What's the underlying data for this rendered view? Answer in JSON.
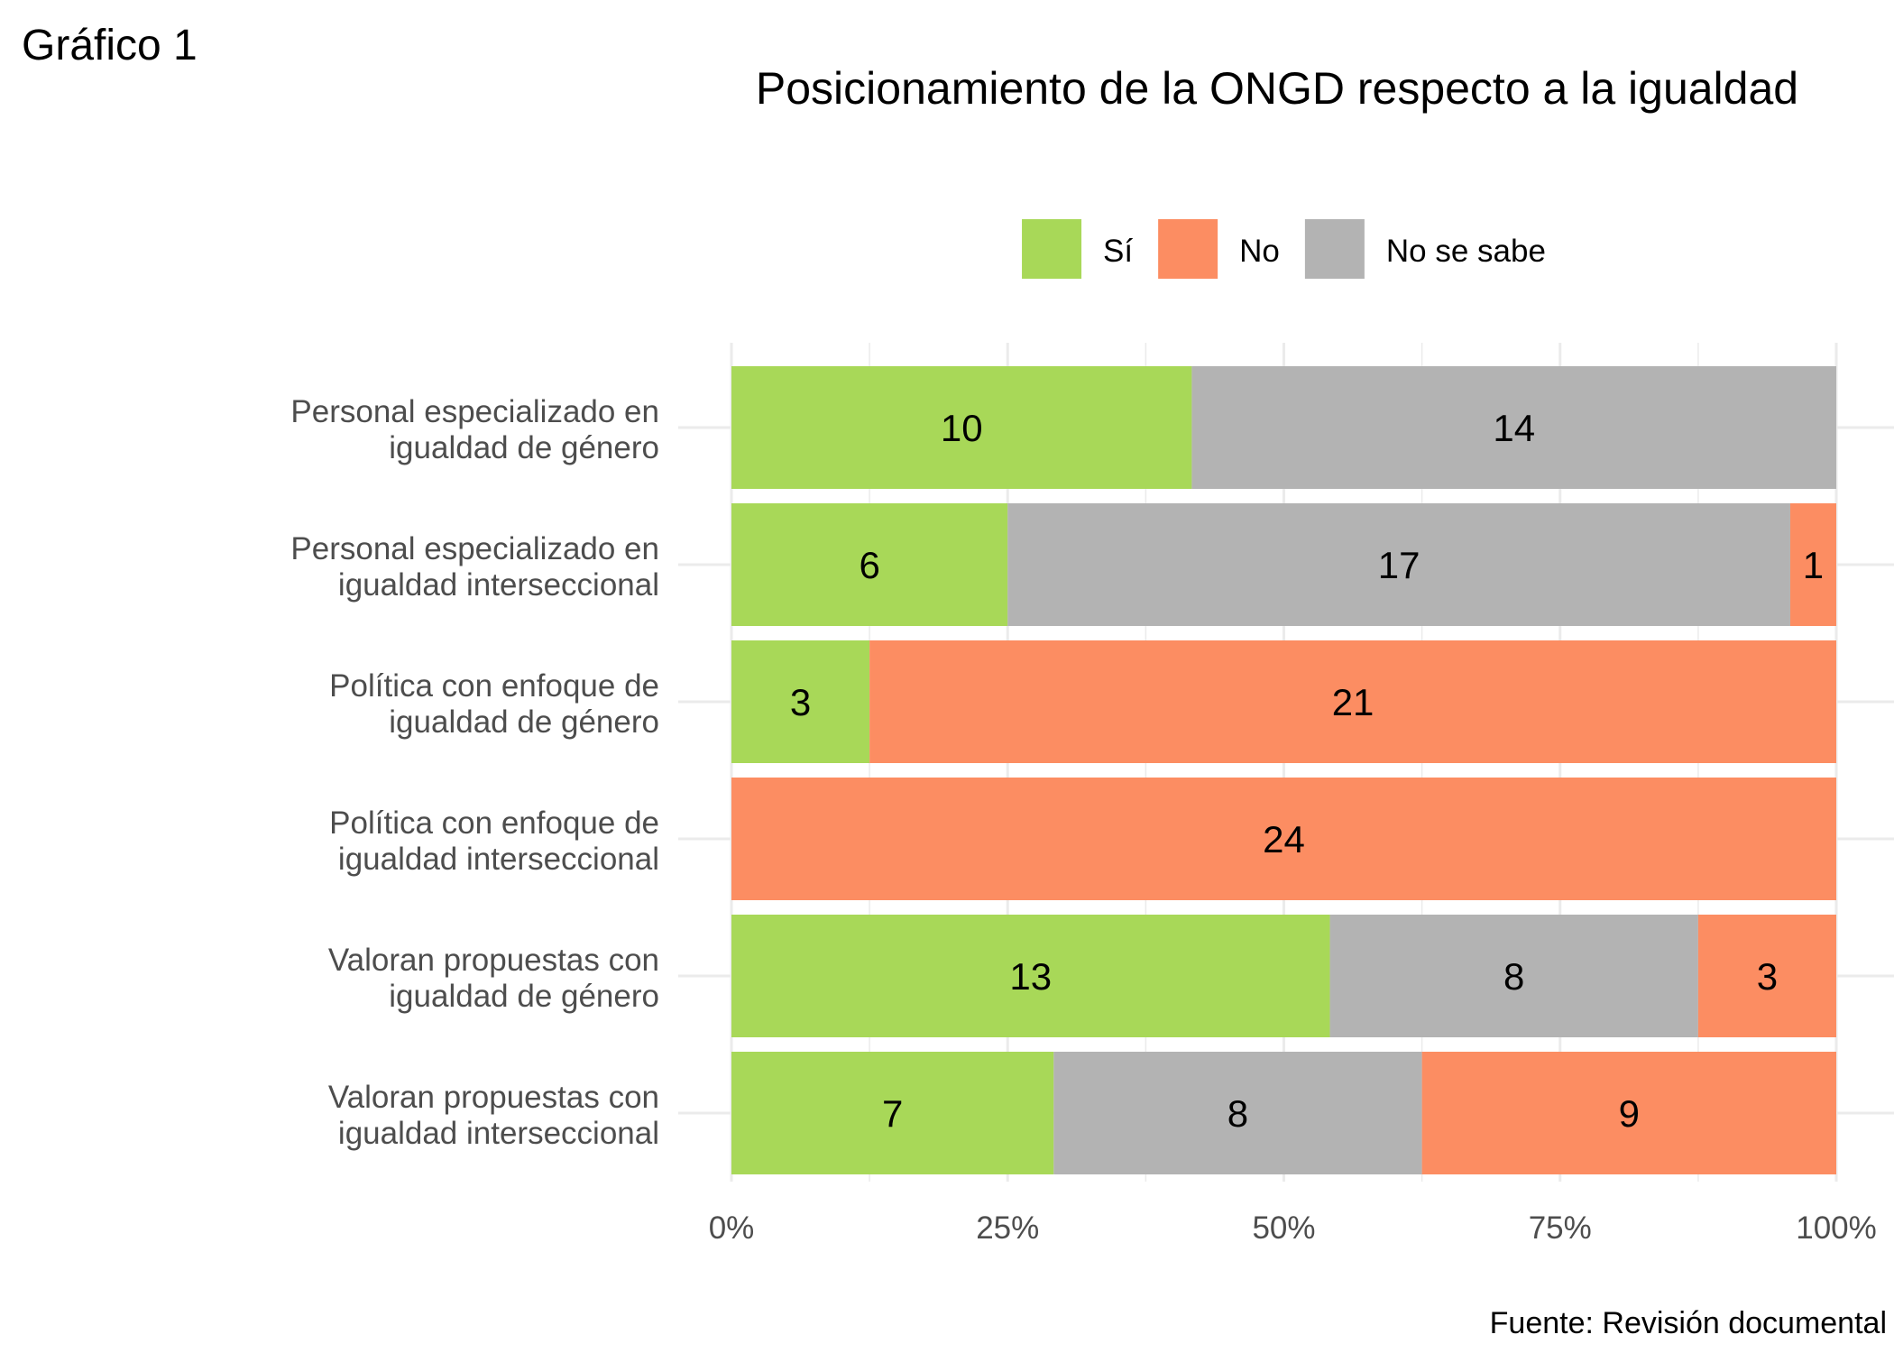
{
  "figure_label": "Gráfico 1",
  "source": "Fuente: Revisión documental",
  "colors": {
    "si": "#a8d858",
    "no": "#fc8d62",
    "nosabe": "#b3b3b3",
    "grid": "#ebebeb",
    "axis_text": "#4d4d4d",
    "text": "#000000"
  },
  "chart_data": {
    "type": "bar",
    "orientation": "horizontal",
    "stacked": true,
    "normalized": true,
    "title": "Posicionamiento de la ONGD respecto a la igualdad",
    "legend": {
      "position": "top",
      "entries": [
        {
          "key": "si",
          "label": "Sí"
        },
        {
          "key": "no",
          "label": "No"
        },
        {
          "key": "nosabe",
          "label": "No se sabe"
        }
      ]
    },
    "x_ticks": [
      "0%",
      "25%",
      "50%",
      "75%",
      "100%"
    ],
    "xlim": [
      0,
      1
    ],
    "grid": true,
    "categories": [
      {
        "lines": [
          "Personal especializado en",
          "igualdad de género"
        ],
        "segments": [
          {
            "key": "si",
            "value": 10
          },
          {
            "key": "nosabe",
            "value": 14
          }
        ]
      },
      {
        "lines": [
          "Personal especializado en",
          "igualdad interseccional"
        ],
        "segments": [
          {
            "key": "si",
            "value": 6
          },
          {
            "key": "nosabe",
            "value": 17
          },
          {
            "key": "no",
            "value": 1
          }
        ]
      },
      {
        "lines": [
          "Política con enfoque de",
          "igualdad de género"
        ],
        "segments": [
          {
            "key": "si",
            "value": 3
          },
          {
            "key": "no",
            "value": 21
          }
        ]
      },
      {
        "lines": [
          "Política con enfoque de",
          "igualdad interseccional"
        ],
        "segments": [
          {
            "key": "no",
            "value": 24
          }
        ]
      },
      {
        "lines": [
          "Valoran propuestas con",
          "igualdad de género"
        ],
        "segments": [
          {
            "key": "si",
            "value": 13
          },
          {
            "key": "nosabe",
            "value": 8
          },
          {
            "key": "no",
            "value": 3
          }
        ]
      },
      {
        "lines": [
          "Valoran propuestas con",
          "igualdad interseccional"
        ],
        "segments": [
          {
            "key": "si",
            "value": 7
          },
          {
            "key": "nosabe",
            "value": 8
          },
          {
            "key": "no",
            "value": 9
          }
        ]
      }
    ]
  }
}
